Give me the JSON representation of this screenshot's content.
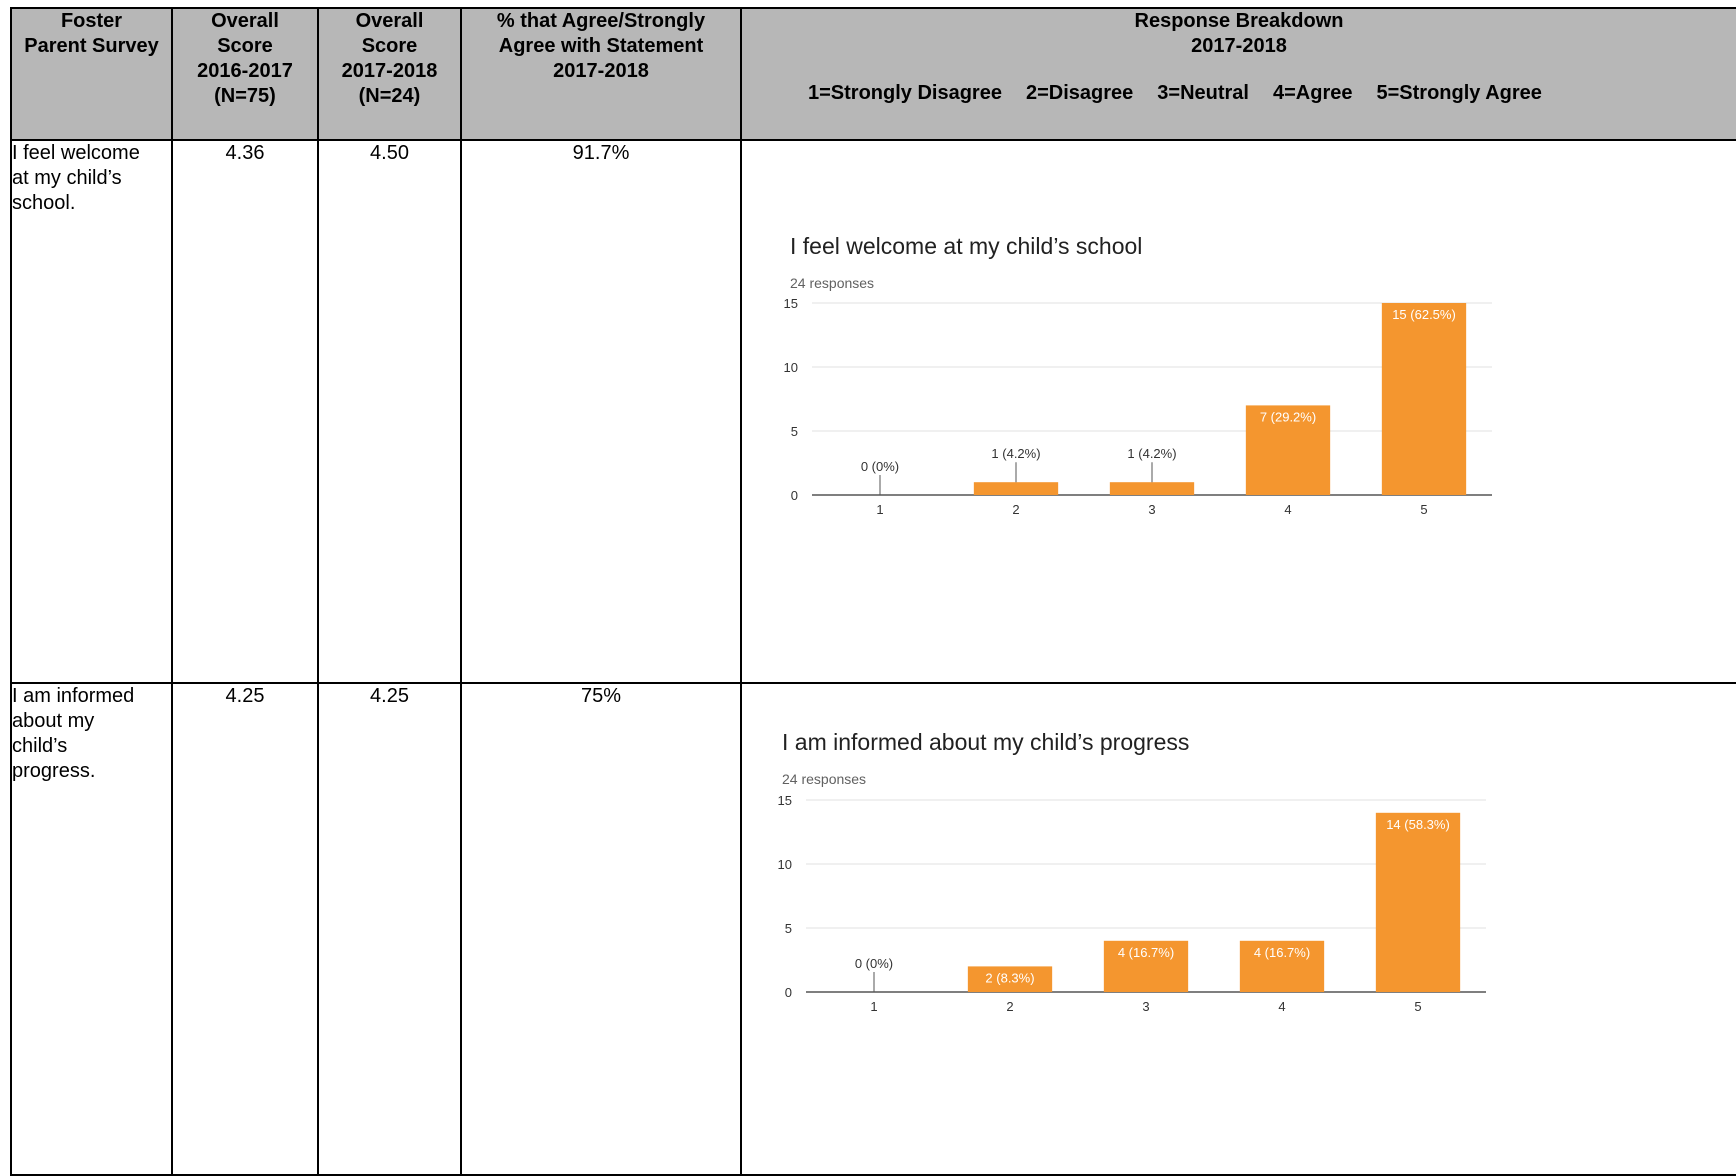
{
  "header": {
    "col1": [
      "Foster",
      "Parent Survey"
    ],
    "col2": [
      "Overall",
      "Score",
      "2016-2017",
      "(N=75)"
    ],
    "col3": [
      "Overall",
      "Score",
      "2017-2018",
      "(N=24)"
    ],
    "col4": [
      "% that Agree/Strongly",
      "Agree with Statement",
      "2017-2018"
    ],
    "col5": [
      "Response Breakdown",
      "2017-2018"
    ],
    "legend": [
      "1=Strongly Disagree",
      "2=Disagree",
      "3=Neutral",
      "4=Agree",
      "5=Strongly Agree"
    ]
  },
  "rows": [
    {
      "statement": [
        "I feel welcome",
        "at my child’s",
        "school."
      ],
      "score_2016": "4.36",
      "score_2017": "4.50",
      "pct_agree": "91.7%"
    },
    {
      "statement": [
        "I am informed",
        "about my",
        "child’s",
        "progress."
      ],
      "score_2016": "4.25",
      "score_2017": "4.25",
      "pct_agree": "75%"
    }
  ],
  "chart_data": [
    {
      "type": "bar",
      "title": "I feel welcome at my child’s school",
      "subtitle": "24 responses",
      "categories": [
        "1",
        "2",
        "3",
        "4",
        "5"
      ],
      "values": [
        0,
        1,
        1,
        7,
        15
      ],
      "labels": [
        "0 (0%)",
        "1 (4.2%)",
        "1 (4.2%)",
        "7 (29.2%)",
        "15 (62.5%)"
      ],
      "yticks": [
        "0",
        "5",
        "10",
        "15"
      ],
      "ylim": [
        0,
        15
      ],
      "color": "#f4962f",
      "grid": true
    },
    {
      "type": "bar",
      "title": "I am informed about my child’s progress",
      "subtitle": "24 responses",
      "categories": [
        "1",
        "2",
        "3",
        "4",
        "5"
      ],
      "values": [
        0,
        2,
        4,
        4,
        14
      ],
      "labels": [
        "0 (0%)",
        "2 (8.3%)",
        "4 (16.7%)",
        "4 (16.7%)",
        "14 (58.3%)"
      ],
      "yticks": [
        "0",
        "5",
        "10",
        "15"
      ],
      "ylim": [
        0,
        15
      ],
      "color": "#f4962f",
      "grid": true
    }
  ]
}
